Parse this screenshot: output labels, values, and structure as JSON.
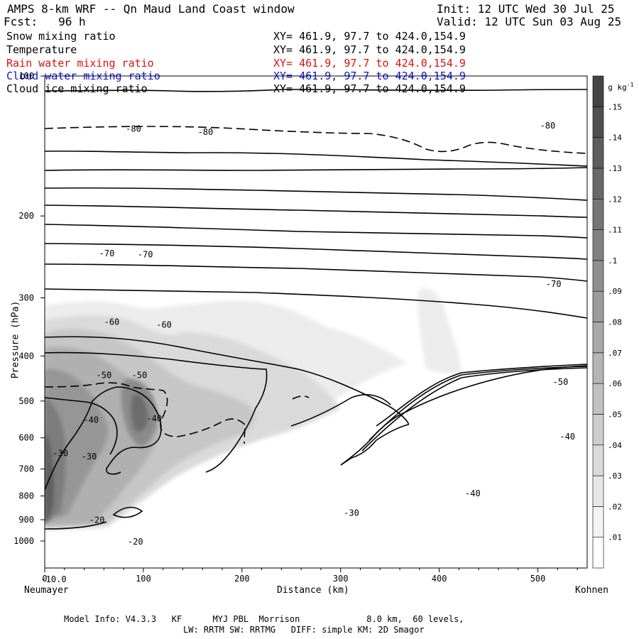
{
  "header": {
    "title": "AMPS 8-km WRF -- Qn Maud Land Coast window",
    "init": "Init: 12 UTC Wed 30 Jul 25",
    "fcst": "Fcst:   96 h",
    "valid": "Valid: 12 UTC Sun 03 Aug 25"
  },
  "variables": [
    {
      "name": "Snow mixing ratio",
      "xy": "XY= 461.9, 97.7 to 424.0,154.9",
      "color": "#000000"
    },
    {
      "name": "Temperature",
      "xy": "XY= 461.9, 97.7 to 424.0,154.9",
      "color": "#000000"
    },
    {
      "name": "Rain water mixing ratio",
      "xy": "XY= 461.9, 97.7 to 424.0,154.9",
      "color": "#e01010"
    },
    {
      "name": "Cloud water mixing ratio",
      "xy": "XY= 461.9, 97.7 to 424.0,154.9",
      "color": "#1010d0"
    },
    {
      "name": "Cloud ice mixing ratio",
      "xy": "XY= 461.9, 97.7 to 424.0,154.9",
      "color": "#000000"
    }
  ],
  "axes": {
    "ylabel": "Pressure (hPa)",
    "xlabel": "Distance (km)",
    "left_station": "Neumayer",
    "right_station": "Kohnen",
    "colorbar_unit": "g kg",
    "colorbar_unit_exp": "-1"
  },
  "footer": {
    "line1": "Model Info: V4.3.3   KF      MYJ PBL  Morrison             8.0 km,  60 levels,",
    "line2": "LW: RRTM SW: RRTMG   DIFF: simple KM: 2D Smagor"
  },
  "chart_data": {
    "type": "contour",
    "x_range": [
      0,
      550
    ],
    "y_range_hPa": [
      100,
      1050
    ],
    "y_log_scale": true,
    "x_ticks": [
      "0",
      "100",
      "200",
      "300",
      "400",
      "500"
    ],
    "y_ticks": [
      "100",
      "200",
      "300",
      "400",
      "500",
      "600",
      "700",
      "800",
      "900",
      "1000"
    ],
    "colorbar_ticks": [
      ".01",
      ".02",
      ".03",
      ".04",
      ".05",
      ".06",
      ".07",
      ".08",
      ".09",
      ".1",
      ".11",
      ".12",
      ".13",
      ".14",
      ".15"
    ],
    "colorbar_levels": [
      0.01,
      0.02,
      0.03,
      0.04,
      0.05,
      0.06,
      0.07,
      0.08,
      0.09,
      0.1,
      0.11,
      0.12,
      0.13,
      0.14,
      0.15
    ],
    "temperature_labels": [
      {
        "text": "-80",
        "x": 90,
        "p": 130
      },
      {
        "text": "-80",
        "x": 163,
        "p": 132
      },
      {
        "text": "-80",
        "x": 510,
        "p": 128
      },
      {
        "text": "-70",
        "x": 63,
        "p": 241
      },
      {
        "text": "-70",
        "x": 102,
        "p": 242
      },
      {
        "text": "-70",
        "x": 516,
        "p": 280
      },
      {
        "text": "-60",
        "x": 68,
        "p": 338
      },
      {
        "text": "-60",
        "x": 121,
        "p": 343
      },
      {
        "text": "-50",
        "x": 60,
        "p": 440
      },
      {
        "text": "-50",
        "x": 96,
        "p": 440
      },
      {
        "text": "-50",
        "x": 523,
        "p": 455
      },
      {
        "text": "-40",
        "x": 47,
        "p": 549
      },
      {
        "text": "-40",
        "x": 111,
        "p": 545
      },
      {
        "text": "-40",
        "x": 530,
        "p": 596
      },
      {
        "text": "-40",
        "x": 434,
        "p": 790
      },
      {
        "text": "-30",
        "x": 16,
        "p": 648
      },
      {
        "text": "-30",
        "x": 45,
        "p": 658
      },
      {
        "text": "-30",
        "x": 311,
        "p": 870
      },
      {
        "text": "-20",
        "x": 53,
        "p": 902
      },
      {
        "text": "-20",
        "x": 92,
        "p": 1003
      },
      {
        "text": "-10.0",
        "x": 9,
        "p": 1210
      }
    ]
  }
}
